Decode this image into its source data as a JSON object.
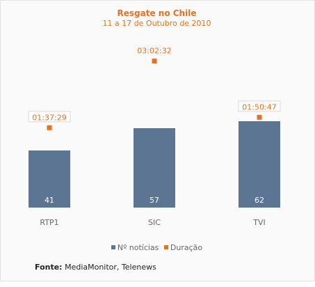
{
  "chart_data": {
    "type": "bar",
    "title": "Resgate no Chile",
    "subtitle": "11 a 17 de Outubro de 2010",
    "categories": [
      "RTP1",
      "SIC",
      "TVI"
    ],
    "series": [
      {
        "name": "Nº notícias",
        "type": "bar",
        "color": "#5b7593",
        "values": [
          41,
          57,
          62
        ],
        "labels": [
          "41",
          "57",
          "62"
        ]
      },
      {
        "name": "Duração",
        "type": "scatter",
        "color": "#e8701f",
        "values": [
          "01:37:29",
          "03:02:32",
          "01:50:47"
        ],
        "labels": [
          "01:37:29",
          "03:02:32",
          "01:50:47"
        ]
      }
    ],
    "legend": "bottom",
    "grid": false
  },
  "source": {
    "label": "Fonte:",
    "text": " MediaMonitor, Telenews"
  }
}
